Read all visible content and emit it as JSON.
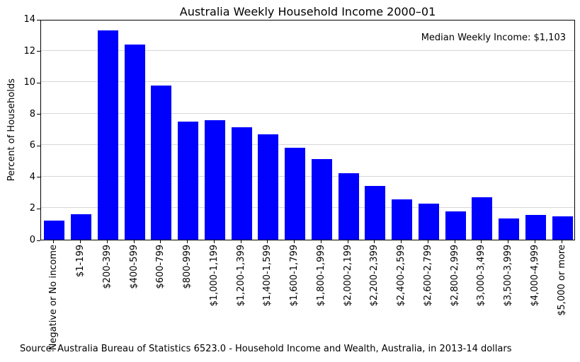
{
  "chart_data": {
    "type": "bar",
    "title": "Australia Weekly Household Income 2000–01",
    "ylabel": "Percent of Households",
    "xlabel": "",
    "categories": [
      "Negative or No income",
      "$1-199",
      "$200-399",
      "$400-599",
      "$600-799",
      "$800-999",
      "$1,000-1,199",
      "$1,200-1,399",
      "$1,400-1,599",
      "$1,600-1,799",
      "$1,800-1,999",
      "$2,000-2,199",
      "$2,200-2,399",
      "$2,400-2,599",
      "$2,600-2,799",
      "$2,800-2,999",
      "$3,000-3,499",
      "$3,500-3,999",
      "$4,000-4,999",
      "$5,000 or more"
    ],
    "values": [
      1.2,
      1.6,
      13.3,
      12.4,
      9.8,
      7.5,
      7.6,
      7.15,
      6.7,
      5.85,
      5.1,
      4.2,
      3.4,
      2.55,
      2.3,
      1.8,
      2.7,
      1.35,
      1.55,
      1.5
    ],
    "ylim": [
      0,
      14
    ],
    "yticks": [
      0,
      2,
      4,
      6,
      8,
      10,
      12,
      14
    ],
    "grid": true,
    "legend": "none",
    "bar_color": "#0000ff",
    "grid_color": "#d7d7d7",
    "annotation": "Median Weekly Income: $1,103",
    "source": "Source: Australia Bureau of Statistics 6523.0 - Household Income and Wealth, Australia, in 2013-14 dollars"
  }
}
